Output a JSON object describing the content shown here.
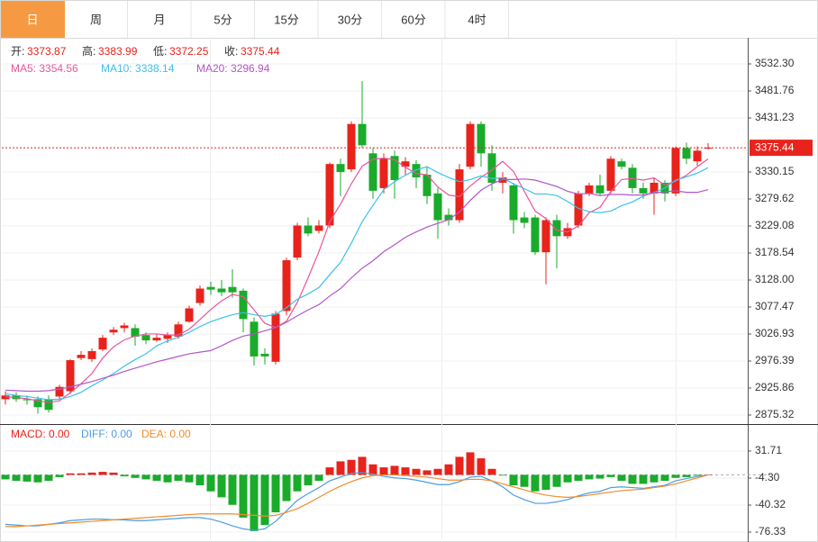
{
  "tabs": [
    "日",
    "周",
    "月",
    "5分",
    "15分",
    "30分",
    "60分",
    "4时"
  ],
  "active_tab": 0,
  "tab_active_color": "#f59a42",
  "chart_data": [
    {
      "type": "candlestick",
      "up_color": "#e8231c",
      "down_color": "#1aab2b",
      "header": [
        {
          "label": "开:",
          "value": "3373.87"
        },
        {
          "label": "高:",
          "value": "3383.99"
        },
        {
          "label": "低:",
          "value": "3372.25"
        },
        {
          "label": "收:",
          "value": "3375.44"
        }
      ],
      "open": [
        2905,
        2912,
        2905,
        2905,
        2905,
        2910,
        2920,
        2982,
        2980,
        2998,
        3030,
        3038,
        3038,
        3025,
        3015,
        3018,
        3022,
        3050,
        3085,
        3115,
        3112,
        3115,
        3108,
        3050,
        2990,
        2975,
        3070,
        3170,
        3230,
        3220,
        3230,
        3345,
        3335,
        3420,
        3365,
        3300,
        3360,
        3340,
        3345,
        3325,
        3290,
        3250,
        3240,
        3340,
        3420,
        3365,
        3310,
        3305,
        3245,
        3245,
        3180,
        3240,
        3210,
        3230,
        3290,
        3305,
        3295,
        3350,
        3338,
        3300,
        3290,
        3310,
        3290,
        3375,
        3350,
        3373.87
      ],
      "high": [
        2920,
        2918,
        2912,
        2910,
        2912,
        2932,
        2980,
        2995,
        3000,
        3025,
        3040,
        3048,
        3045,
        3030,
        3028,
        3030,
        3050,
        3080,
        3118,
        3125,
        3128,
        3148,
        3112,
        3058,
        3000,
        3070,
        3170,
        3235,
        3245,
        3240,
        3348,
        3355,
        3425,
        3500,
        3375,
        3365,
        3370,
        3358,
        3352,
        3340,
        3300,
        3262,
        3345,
        3425,
        3425,
        3380,
        3330,
        3310,
        3255,
        3250,
        3245,
        3250,
        3235,
        3295,
        3310,
        3325,
        3360,
        3355,
        3345,
        3310,
        3320,
        3315,
        3378,
        3385,
        3378,
        3383.99
      ],
      "low": [
        2895,
        2900,
        2895,
        2878,
        2880,
        2905,
        2915,
        2978,
        2975,
        2995,
        3025,
        3030,
        3005,
        3008,
        3012,
        3010,
        3018,
        3048,
        3080,
        3100,
        3098,
        3095,
        3030,
        2968,
        2970,
        2970,
        3062,
        3165,
        3210,
        3215,
        3225,
        3285,
        3330,
        3375,
        3280,
        3290,
        3280,
        3325,
        3300,
        3270,
        3205,
        3230,
        3235,
        3335,
        3340,
        3295,
        3290,
        3215,
        3225,
        3175,
        3120,
        3150,
        3205,
        3225,
        3285,
        3285,
        3290,
        3335,
        3290,
        3280,
        3250,
        3275,
        3285,
        3345,
        3342,
        3372.25
      ],
      "close": [
        2912,
        2905,
        2903,
        2890,
        2885,
        2928,
        2978,
        2988,
        2995,
        3020,
        3035,
        3043,
        3022,
        3015,
        3020,
        3025,
        3045,
        3075,
        3112,
        3110,
        3105,
        3105,
        3055,
        2985,
        2985,
        3065,
        3165,
        3230,
        3215,
        3230,
        3345,
        3330,
        3420,
        3380,
        3295,
        3355,
        3315,
        3350,
        3320,
        3285,
        3240,
        3240,
        3335,
        3420,
        3365,
        3310,
        3320,
        3240,
        3235,
        3180,
        3240,
        3210,
        3225,
        3290,
        3305,
        3290,
        3355,
        3340,
        3300,
        3290,
        3310,
        3290,
        3375,
        3355,
        3370,
        3375.44
      ],
      "series": [
        {
          "name": "MA5",
          "label": "MA5: 3354.56",
          "color": "#e8559a",
          "values": [
            2910,
            2908,
            2906,
            2902,
            2899,
            2902,
            2917,
            2934,
            2953,
            2982,
            3003,
            3016,
            3023,
            3027,
            3027,
            3025,
            3025,
            3036,
            3054,
            3073,
            3089,
            3101,
            3097,
            3072,
            3047,
            3039,
            3051,
            3086,
            3132,
            3181,
            3237,
            3270,
            3308,
            3341,
            3354,
            3356,
            3353,
            3339,
            3327,
            3325,
            3302,
            3287,
            3284,
            3304,
            3320,
            3334,
            3350,
            3331,
            3294,
            3257,
            3243,
            3221,
            3218,
            3229,
            3254,
            3264,
            3293,
            3316,
            3318,
            3315,
            3319,
            3306,
            3313,
            3324,
            3340,
            3354.56
          ]
        },
        {
          "name": "MA10",
          "label": "MA10: 3338.14",
          "color": "#3cc2e8",
          "values": [
            2915,
            2912,
            2910,
            2907,
            2904,
            2905,
            2910,
            2918,
            2930,
            2941,
            2953,
            2967,
            2979,
            2990,
            3005,
            3014,
            3021,
            3030,
            3041,
            3050,
            3057,
            3063,
            3067,
            3063,
            3060,
            3064,
            3076,
            3092,
            3102,
            3114,
            3138,
            3161,
            3197,
            3237,
            3268,
            3297,
            3312,
            3324,
            3334,
            3340,
            3329,
            3320,
            3312,
            3316,
            3323,
            3318,
            3319,
            3308,
            3299,
            3289,
            3289,
            3286,
            3275,
            3262,
            3256,
            3254,
            3257,
            3267,
            3274,
            3285,
            3292,
            3300,
            3315,
            3321,
            3328,
            3338.14
          ]
        },
        {
          "name": "MA20",
          "label": "MA20: 3296.94",
          "color": "#b256c8",
          "values": [
            2922,
            2921,
            2920,
            2920,
            2921,
            2924,
            2928,
            2933,
            2938,
            2944,
            2950,
            2957,
            2963,
            2969,
            2975,
            2980,
            2985,
            2990,
            2993,
            2996,
            3005,
            3015,
            3023,
            3027,
            3033,
            3039,
            3049,
            3061,
            3072,
            3082,
            3098,
            3112,
            3132,
            3150,
            3164,
            3181,
            3194,
            3208,
            3218,
            3227,
            3234,
            3241,
            3255,
            3277,
            3296,
            3308,
            3316,
            3316,
            3317,
            3315,
            3309,
            3303,
            3294,
            3289,
            3290,
            3286,
            3288,
            3288,
            3287,
            3287,
            3291,
            3293,
            3295,
            3292,
            3292,
            3296.94
          ]
        }
      ],
      "last_price": 3375.44,
      "last_price_color": "#e8231c",
      "ylim": [
        2860.16,
        3581.16
      ],
      "yticks": [
        {
          "value": 3532.3,
          "label": "3532.30"
        },
        3481.76,
        3431.23,
        3330.15,
        3279.62,
        3229.08,
        3178.54,
        {
          "value": 3128,
          "label": "3128.00"
        },
        3077.47,
        3026.93,
        2976.39,
        2925.86,
        2875.32
      ]
    },
    {
      "type": "macd",
      "up_color": "#e8231c",
      "down_color": "#1aab2b",
      "legend": [
        {
          "label": "MACD: 0.00",
          "color": "#e8231c"
        },
        {
          "label": "DIFF: 0.00",
          "color": "#4a9de0"
        },
        {
          "label": "DEA: 0.00",
          "color": "#f08c2d"
        }
      ],
      "values": [
        -6,
        -8,
        -9,
        -10,
        -8,
        -3,
        2,
        2,
        3,
        4,
        3,
        -2,
        -4,
        -6,
        -8,
        -10,
        -8,
        -10,
        -14,
        -22,
        -30,
        -40,
        -57,
        -75,
        -67,
        -50,
        -35,
        -22,
        -14,
        -8,
        10,
        18,
        20,
        24,
        14,
        10,
        12,
        10,
        8,
        6,
        8,
        14,
        24,
        30,
        22,
        8,
        -1,
        -14,
        -16,
        -22,
        -20,
        -16,
        -10,
        -8,
        -6,
        -5,
        -3,
        -8,
        -12,
        -12,
        -10,
        -8,
        -4,
        -3,
        -1,
        0
      ],
      "series": [
        {
          "name": "DIFF",
          "color": "#4a9de0",
          "values": [
            -66,
            -67,
            -68,
            -68,
            -66,
            -64,
            -61,
            -60,
            -59,
            -59,
            -60,
            -60,
            -61,
            -61,
            -60,
            -59,
            -58,
            -57,
            -57,
            -59,
            -63,
            -68,
            -72,
            -74,
            -72,
            -62,
            -48,
            -34,
            -25,
            -17,
            -8,
            -3,
            2,
            3,
            1,
            -2,
            -4,
            -5,
            -7,
            -10,
            -13,
            -13,
            -9,
            -3,
            -2,
            -8,
            -16,
            -27,
            -33,
            -38,
            -38,
            -36,
            -33,
            -28,
            -24,
            -22,
            -17,
            -16,
            -17,
            -18,
            -16,
            -14,
            -8,
            -5,
            -2,
            0
          ]
        },
        {
          "name": "DEA",
          "color": "#f08c2d",
          "values": [
            -69,
            -69,
            -68,
            -67,
            -66,
            -65,
            -64,
            -63,
            -62,
            -61,
            -60,
            -59,
            -58,
            -57,
            -56,
            -55,
            -54,
            -53,
            -52,
            -52,
            -52,
            -52,
            -53,
            -54,
            -55,
            -54,
            -50,
            -45,
            -38,
            -30,
            -22,
            -15,
            -9,
            -4,
            -1,
            0,
            0,
            -1,
            -2,
            -3,
            -5,
            -7,
            -7,
            -6,
            -6,
            -8,
            -12,
            -16,
            -20,
            -24,
            -27,
            -29,
            -30,
            -29,
            -27,
            -25,
            -23,
            -21,
            -20,
            -19,
            -17,
            -15,
            -12,
            -8,
            -4,
            0
          ]
        }
      ],
      "ylim": [
        -87.13,
        66.52
      ],
      "yticks": [
        31.71,
        {
          "value": -4.3,
          "label": "-4.30"
        },
        -40.32,
        -76.33
      ]
    }
  ]
}
